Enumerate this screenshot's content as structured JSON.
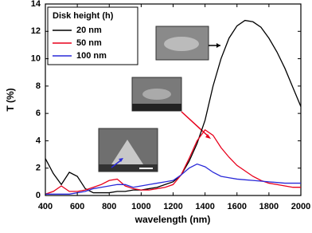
{
  "chart_data": {
    "type": "line",
    "xlabel": "wavelength (nm)",
    "ylabel": "T (%)",
    "legend_title": "Disk height (h)",
    "legend": "upper left",
    "x": [
      400,
      450,
      500,
      550,
      600,
      650,
      700,
      750,
      800,
      850,
      900,
      950,
      1000,
      1050,
      1100,
      1150,
      1200,
      1250,
      1300,
      1350,
      1400,
      1450,
      1500,
      1550,
      1600,
      1650,
      1700,
      1750,
      1800,
      1850,
      1900,
      1950,
      2000
    ],
    "series": [
      {
        "name": "20 nm",
        "color": "#000000",
        "values": [
          2.7,
          1.6,
          0.8,
          1.7,
          1.4,
          0.5,
          0.2,
          0.2,
          0.2,
          0.3,
          0.3,
          0.4,
          0.4,
          0.5,
          0.6,
          0.8,
          1.0,
          1.5,
          2.5,
          3.8,
          5.5,
          8.0,
          10.0,
          11.5,
          12.4,
          12.8,
          12.7,
          12.3,
          11.5,
          10.5,
          9.3,
          7.9,
          6.5
        ]
      },
      {
        "name": "50 nm",
        "color": "#e8001c",
        "values": [
          0.1,
          0.3,
          0.7,
          0.3,
          0.3,
          0.4,
          0.6,
          0.8,
          1.1,
          1.2,
          0.7,
          0.5,
          0.4,
          0.4,
          0.5,
          0.6,
          0.8,
          1.5,
          2.7,
          4.0,
          4.8,
          4.4,
          3.5,
          2.8,
          2.2,
          1.8,
          1.4,
          1.1,
          0.9,
          0.8,
          0.7,
          0.6,
          0.6
        ]
      },
      {
        "name": "100 nm",
        "color": "#2a2ad8",
        "values": [
          0.1,
          0.1,
          0.1,
          0.1,
          0.2,
          0.3,
          0.5,
          0.6,
          0.7,
          0.8,
          0.8,
          0.6,
          0.7,
          0.8,
          0.9,
          1.0,
          1.1,
          1.5,
          2.0,
          2.3,
          2.1,
          1.7,
          1.4,
          1.3,
          1.2,
          1.15,
          1.1,
          1.05,
          1.0,
          0.95,
          0.9,
          0.9,
          0.9
        ]
      }
    ],
    "xlim": [
      400,
      2000
    ],
    "xticks": [
      400,
      600,
      800,
      1000,
      1200,
      1400,
      1600,
      1800,
      2000
    ],
    "ylim": [
      0,
      14
    ],
    "yticks": [
      0,
      2,
      4,
      6,
      8,
      10,
      12,
      14
    ]
  }
}
